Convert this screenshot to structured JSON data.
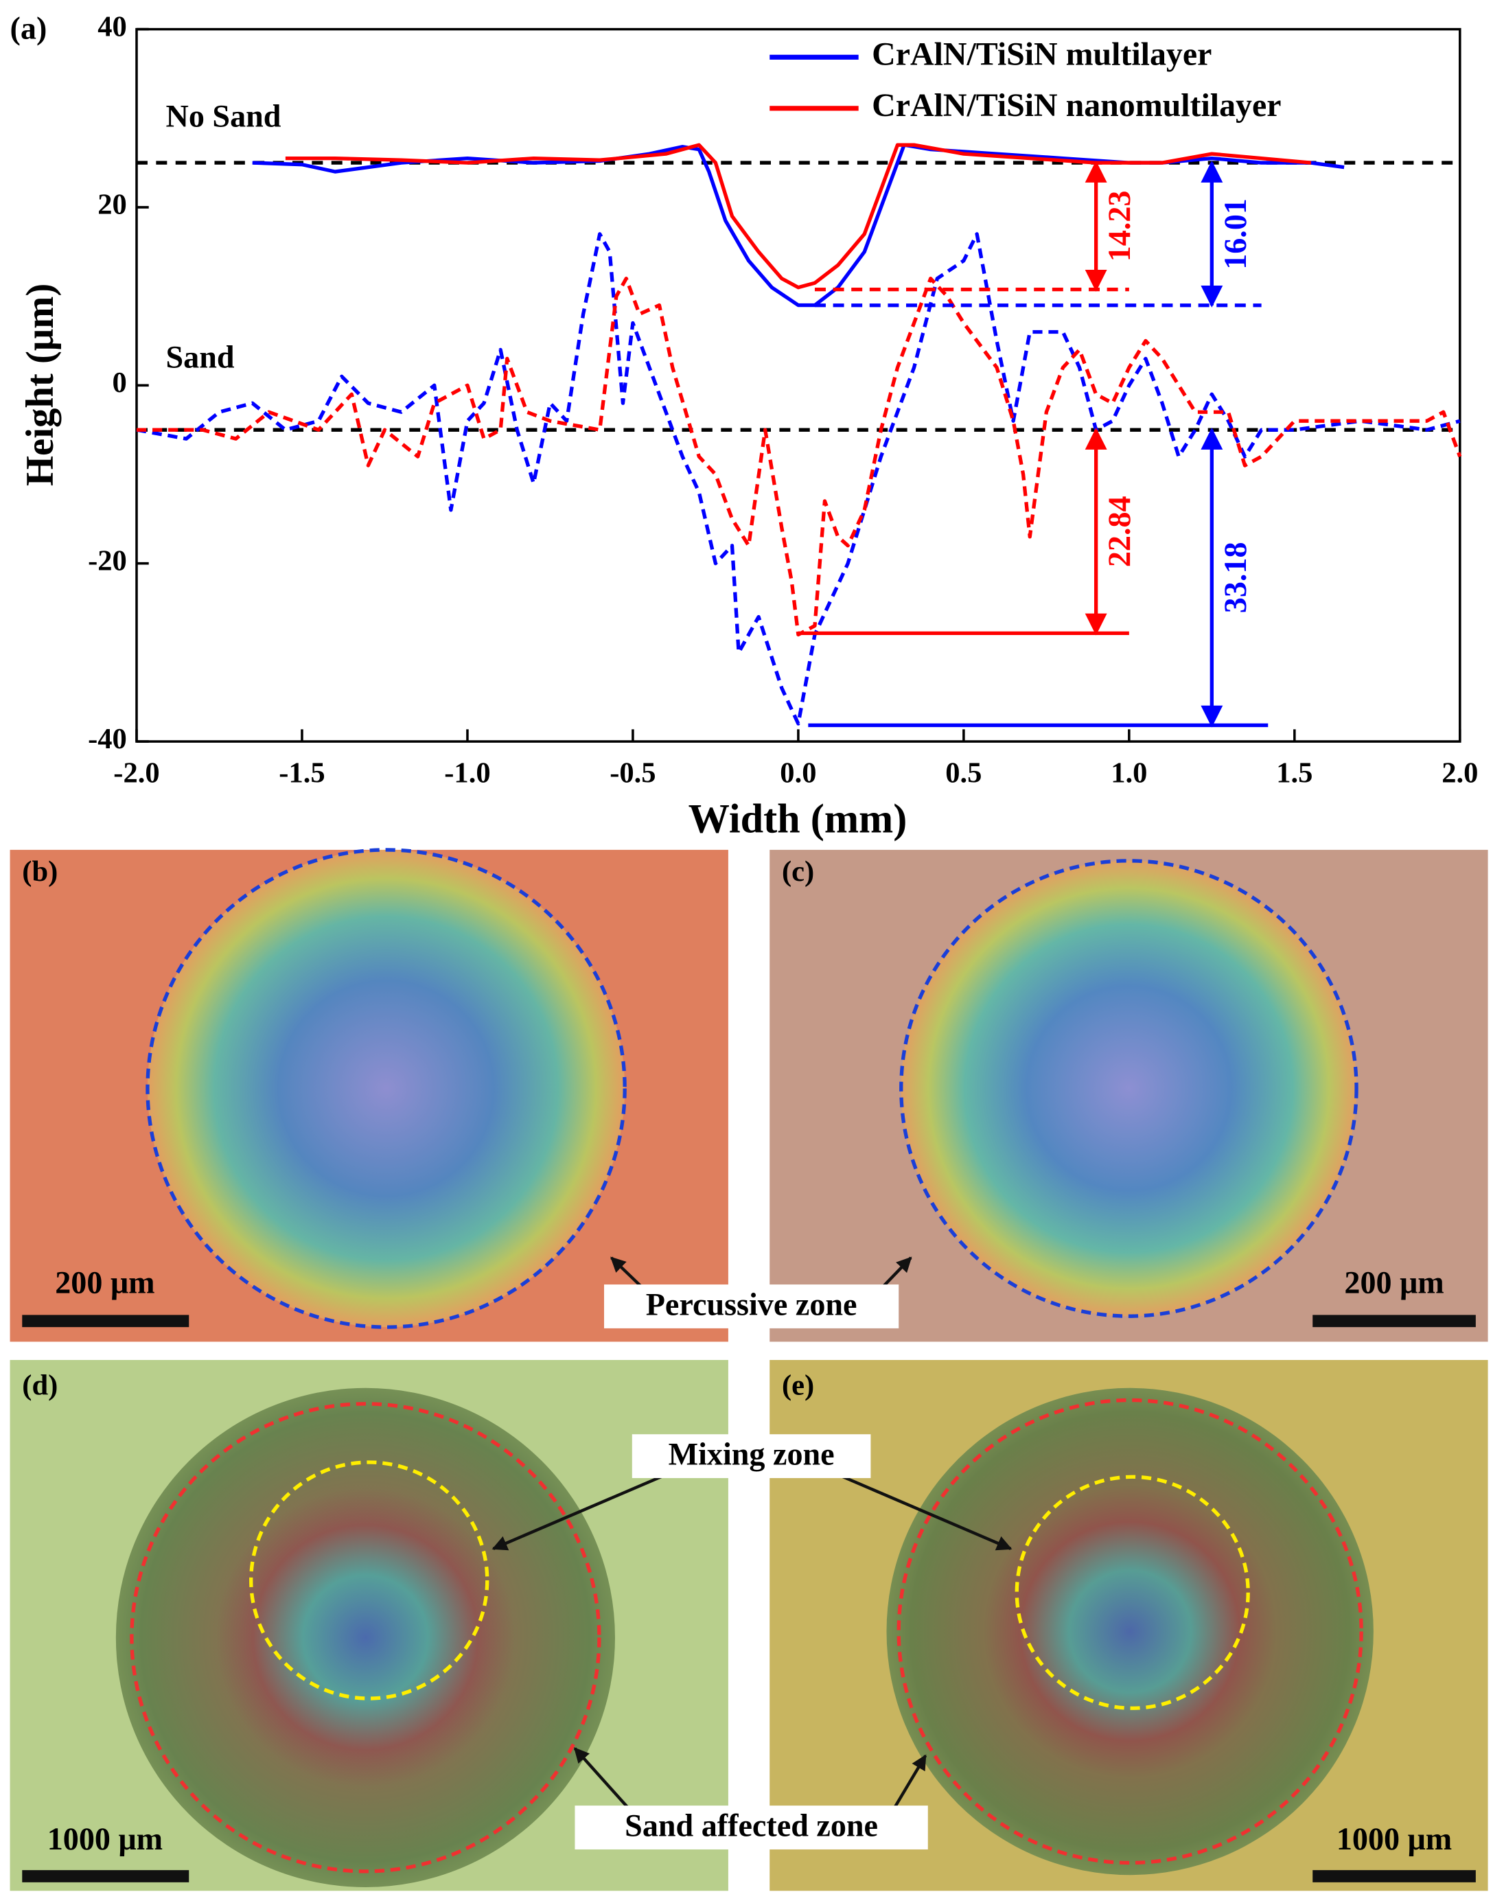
{
  "chart_data": {
    "type": "line",
    "panel_label": "(a)",
    "xlabel": "Width (mm)",
    "ylabel": "Height (μm)",
    "xlim": [
      -2,
      2
    ],
    "xticks": [
      {
        "value": -2,
        "label": "-2.0"
      },
      -1.5,
      {
        "value": -1,
        "label": "-1.0"
      },
      -0.5,
      {
        "value": 0,
        "label": "0.0"
      },
      0.5,
      {
        "value": 1,
        "label": "1.0"
      },
      1.5,
      {
        "value": 2,
        "label": "2.0"
      }
    ],
    "ylim": [
      -40,
      40
    ],
    "yticks": [
      -40,
      -20,
      0,
      20,
      40
    ],
    "legend": "upper right",
    "series": [
      {
        "name": "CrAlN/TiSiN multilayer",
        "color": "#0000ff",
        "style": "solid",
        "x": [
          -1.65,
          -1.5,
          -1.4,
          -1.2,
          -1.0,
          -0.8,
          -0.6,
          -0.45,
          -0.35,
          -0.3,
          -0.27,
          -0.22,
          -0.15,
          -0.08,
          0,
          0.05,
          0.12,
          0.2,
          0.27,
          0.32,
          0.4,
          0.6,
          0.8,
          1.0,
          1.1,
          1.25,
          1.4,
          1.55,
          1.65
        ],
        "values": [
          25,
          24.8,
          24,
          25,
          25.5,
          25,
          25.2,
          26,
          26.8,
          26.5,
          24,
          18.5,
          14,
          11,
          9,
          9,
          11,
          15,
          22,
          27,
          26.5,
          26,
          25.5,
          25,
          25,
          25.5,
          25,
          25,
          24.5
        ]
      },
      {
        "name": "CrAlN/TiSiN nanomultilayer",
        "color": "#ff0000",
        "style": "solid",
        "x": [
          -1.55,
          -1.4,
          -1.2,
          -1.0,
          -0.8,
          -0.6,
          -0.4,
          -0.3,
          -0.25,
          -0.2,
          -0.12,
          -0.05,
          0,
          0.05,
          0.12,
          0.2,
          0.25,
          0.3,
          0.35,
          0.5,
          0.7,
          0.9,
          1.1,
          1.25,
          1.4,
          1.55
        ],
        "values": [
          25.5,
          25.5,
          25.3,
          25,
          25.5,
          25.3,
          26,
          27,
          25,
          19,
          15,
          12,
          11,
          11.5,
          13.5,
          17,
          22,
          27,
          27,
          26,
          25.5,
          25,
          25,
          26,
          25.5,
          25
        ]
      },
      {
        "color": "#0000ff",
        "style": "dashed",
        "x": [
          -2,
          -1.85,
          -1.75,
          -1.65,
          -1.55,
          -1.45,
          -1.38,
          -1.3,
          -1.2,
          -1.1,
          -1.05,
          -1,
          -0.95,
          -0.9,
          -0.85,
          -0.8,
          -0.75,
          -0.7,
          -0.65,
          -0.6,
          -0.57,
          -0.53,
          -0.5,
          -0.45,
          -0.35,
          -0.3,
          -0.25,
          -0.2,
          -0.18,
          -0.12,
          -0.05,
          0,
          0.05,
          0.15,
          0.25,
          0.35,
          0.42,
          0.5,
          0.54,
          0.6,
          0.65,
          0.7,
          0.75,
          0.8,
          0.85,
          0.9,
          0.95,
          1.0,
          1.05,
          1.1,
          1.15,
          1.2,
          1.25,
          1.3,
          1.35,
          1.4,
          1.5,
          1.7,
          1.9,
          2.0
        ],
        "values": [
          -5,
          -6,
          -3,
          -2,
          -5,
          -4,
          1,
          -2,
          -3,
          0,
          -14,
          -4,
          -2,
          4,
          -5,
          -11,
          -2,
          -4,
          8,
          17,
          15,
          -2,
          7,
          2,
          -8,
          -12,
          -20,
          -18,
          -30,
          -26,
          -34,
          -38,
          -28,
          -20,
          -8,
          2,
          12,
          14,
          17,
          5,
          -4,
          6,
          6,
          6,
          2,
          -5,
          -4,
          0,
          3,
          -2,
          -8,
          -5,
          -1,
          -4,
          -8,
          -5,
          -5,
          -4,
          -5,
          -4
        ]
      },
      {
        "color": "#ff0000",
        "style": "dashed",
        "x": [
          -2,
          -1.8,
          -1.7,
          -1.6,
          -1.45,
          -1.35,
          -1.3,
          -1.25,
          -1.15,
          -1.1,
          -1.0,
          -0.95,
          -0.9,
          -0.88,
          -0.82,
          -0.75,
          -0.6,
          -0.55,
          -0.52,
          -0.48,
          -0.42,
          -0.38,
          -0.3,
          -0.25,
          -0.2,
          -0.15,
          -0.1,
          -0.05,
          -0.02,
          0,
          0.05,
          0.08,
          0.12,
          0.15,
          0.2,
          0.25,
          0.3,
          0.35,
          0.4,
          0.45,
          0.5,
          0.6,
          0.65,
          0.68,
          0.7,
          0.75,
          0.8,
          0.85,
          0.9,
          0.95,
          1.0,
          1.05,
          1.1,
          1.2,
          1.3,
          1.35,
          1.4,
          1.5,
          1.7,
          1.9,
          1.95,
          2.0
        ],
        "values": [
          -5,
          -5,
          -6,
          -3,
          -5,
          -1,
          -9,
          -5,
          -8,
          -2,
          0,
          -6,
          -5,
          3,
          -3,
          -4,
          -5,
          10,
          12,
          8,
          9,
          2,
          -8,
          -10,
          -15,
          -18,
          -5,
          -16,
          -22,
          -28,
          -27,
          -13,
          -17,
          -18,
          -14,
          -5,
          2,
          7,
          12,
          10,
          7,
          2,
          -4,
          -10,
          -17,
          -3,
          2,
          4,
          -1,
          -2,
          2,
          5,
          3,
          -3,
          -3,
          -9,
          -8,
          -4,
          -4,
          -4,
          -3,
          -8
        ]
      }
    ],
    "annotations": [
      "No Sand",
      "Sand"
    ],
    "reference_lines": [
      25,
      -5
    ],
    "depths": [
      {
        "value": 14.23,
        "base": 0,
        "color": "#ff0000",
        "style": "dashed"
      },
      {
        "value": 16.01,
        "base": 0,
        "color": "#0000ff",
        "style": "dashed"
      },
      {
        "value": 22.84,
        "base": 1,
        "color": "#ff0000",
        "style": "solid"
      },
      {
        "value": 33.18,
        "base": 1,
        "color": "#0000ff",
        "style": "solid"
      }
    ]
  },
  "panels": [
    {
      "label": "(b)",
      "scale_bar": "200 μm"
    },
    {
      "label": "(c)",
      "scale_bar": "200 μm"
    },
    {
      "label": "(d)",
      "scale_bar": "1000 μm"
    },
    {
      "label": "(e)",
      "scale_bar": "1000 μm"
    }
  ],
  "callouts": [
    "Percussive zone",
    "Mixing zone",
    "Sand affected zone"
  ]
}
